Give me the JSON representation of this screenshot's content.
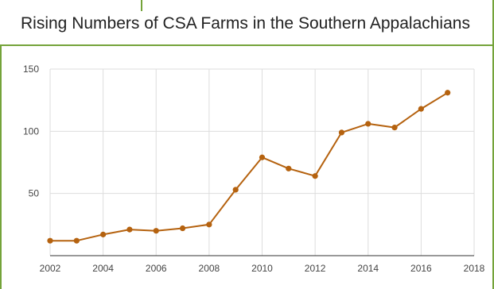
{
  "chart_data": {
    "type": "line",
    "title": "Rising Numbers of CSA Farms in the Southern Appalachians",
    "xlabel": "",
    "ylabel": "",
    "xlim": [
      2002,
      2018
    ],
    "ylim": [
      0,
      150
    ],
    "x_ticks": [
      "2002",
      "2004",
      "2006",
      "2008",
      "2010",
      "2012",
      "2014",
      "2016",
      "2018"
    ],
    "y_ticks": [
      "50",
      "100",
      "150"
    ],
    "grid": true,
    "legend": "none",
    "series": [
      {
        "color": "#b5620f",
        "x": [
          2002,
          2003,
          2004,
          2005,
          2006,
          2007,
          2008,
          2009,
          2010,
          2011,
          2012,
          2013,
          2014,
          2015,
          2016,
          2017
        ],
        "y": [
          12,
          12,
          17,
          21,
          20,
          22,
          25,
          53,
          79,
          70,
          64,
          99,
          106,
          103,
          118,
          131
        ]
      }
    ]
  }
}
